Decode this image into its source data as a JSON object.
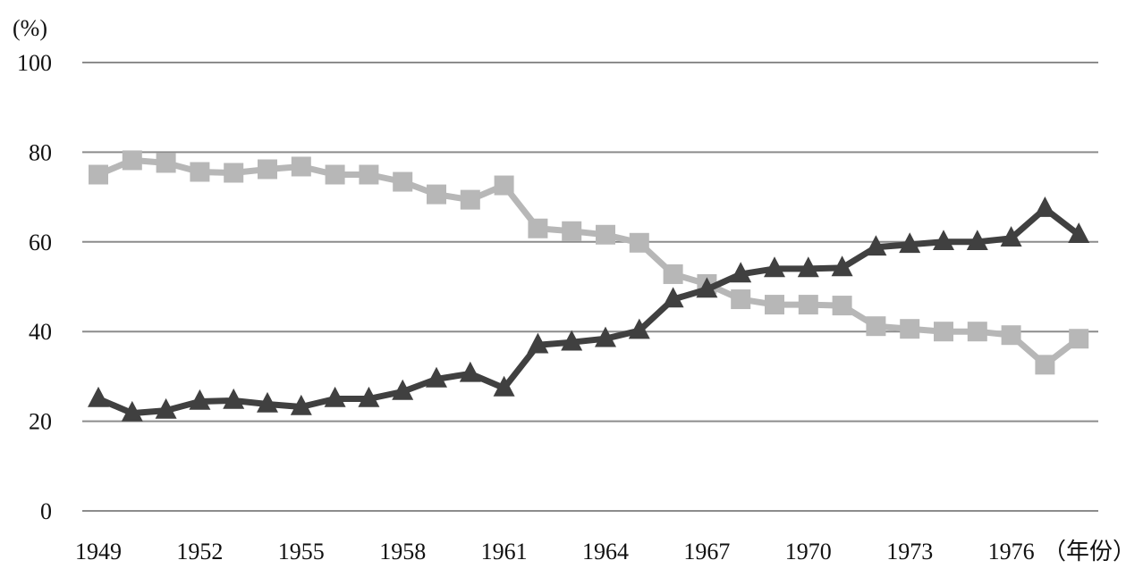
{
  "chart_data": {
    "type": "line",
    "title": "",
    "xlabel": "（年份）",
    "ylabel": "(%)",
    "ylim": [
      0,
      100
    ],
    "yticks": [
      0,
      20,
      40,
      60,
      80,
      100
    ],
    "xticks": [
      1949,
      1952,
      1955,
      1958,
      1961,
      1964,
      1967,
      1970,
      1973,
      1976
    ],
    "grid": true,
    "x": [
      1949,
      1950,
      1951,
      1952,
      1953,
      1954,
      1955,
      1956,
      1957,
      1958,
      1959,
      1960,
      1961,
      1962,
      1963,
      1964,
      1965,
      1966,
      1967,
      1968,
      1969,
      1970,
      1971,
      1972,
      1973,
      1974,
      1975,
      1976,
      1977,
      1978
    ],
    "series": [
      {
        "marker": "square",
        "color": "#b7b7b7",
        "values": [
          75,
          78.2,
          77.6,
          75.6,
          75.4,
          76.2,
          76.8,
          75,
          75,
          73.4,
          70.6,
          69.4,
          72.6,
          63,
          62.4,
          61.6,
          59.8,
          52.8,
          50.6,
          47.2,
          46,
          46,
          45.8,
          41.2,
          40.6,
          40,
          40,
          39.2,
          32.6,
          38.4
        ]
      },
      {
        "marker": "triangle",
        "color": "#404040",
        "values": [
          25,
          21.8,
          22.4,
          24.4,
          24.6,
          23.8,
          23.2,
          25,
          25,
          26.6,
          29.4,
          30.6,
          27.4,
          37,
          37.6,
          38.4,
          40.2,
          47.2,
          49.4,
          52.8,
          54,
          54,
          54.2,
          58.8,
          59.4,
          60,
          60,
          60.8,
          67.4,
          61.6
        ]
      }
    ]
  }
}
